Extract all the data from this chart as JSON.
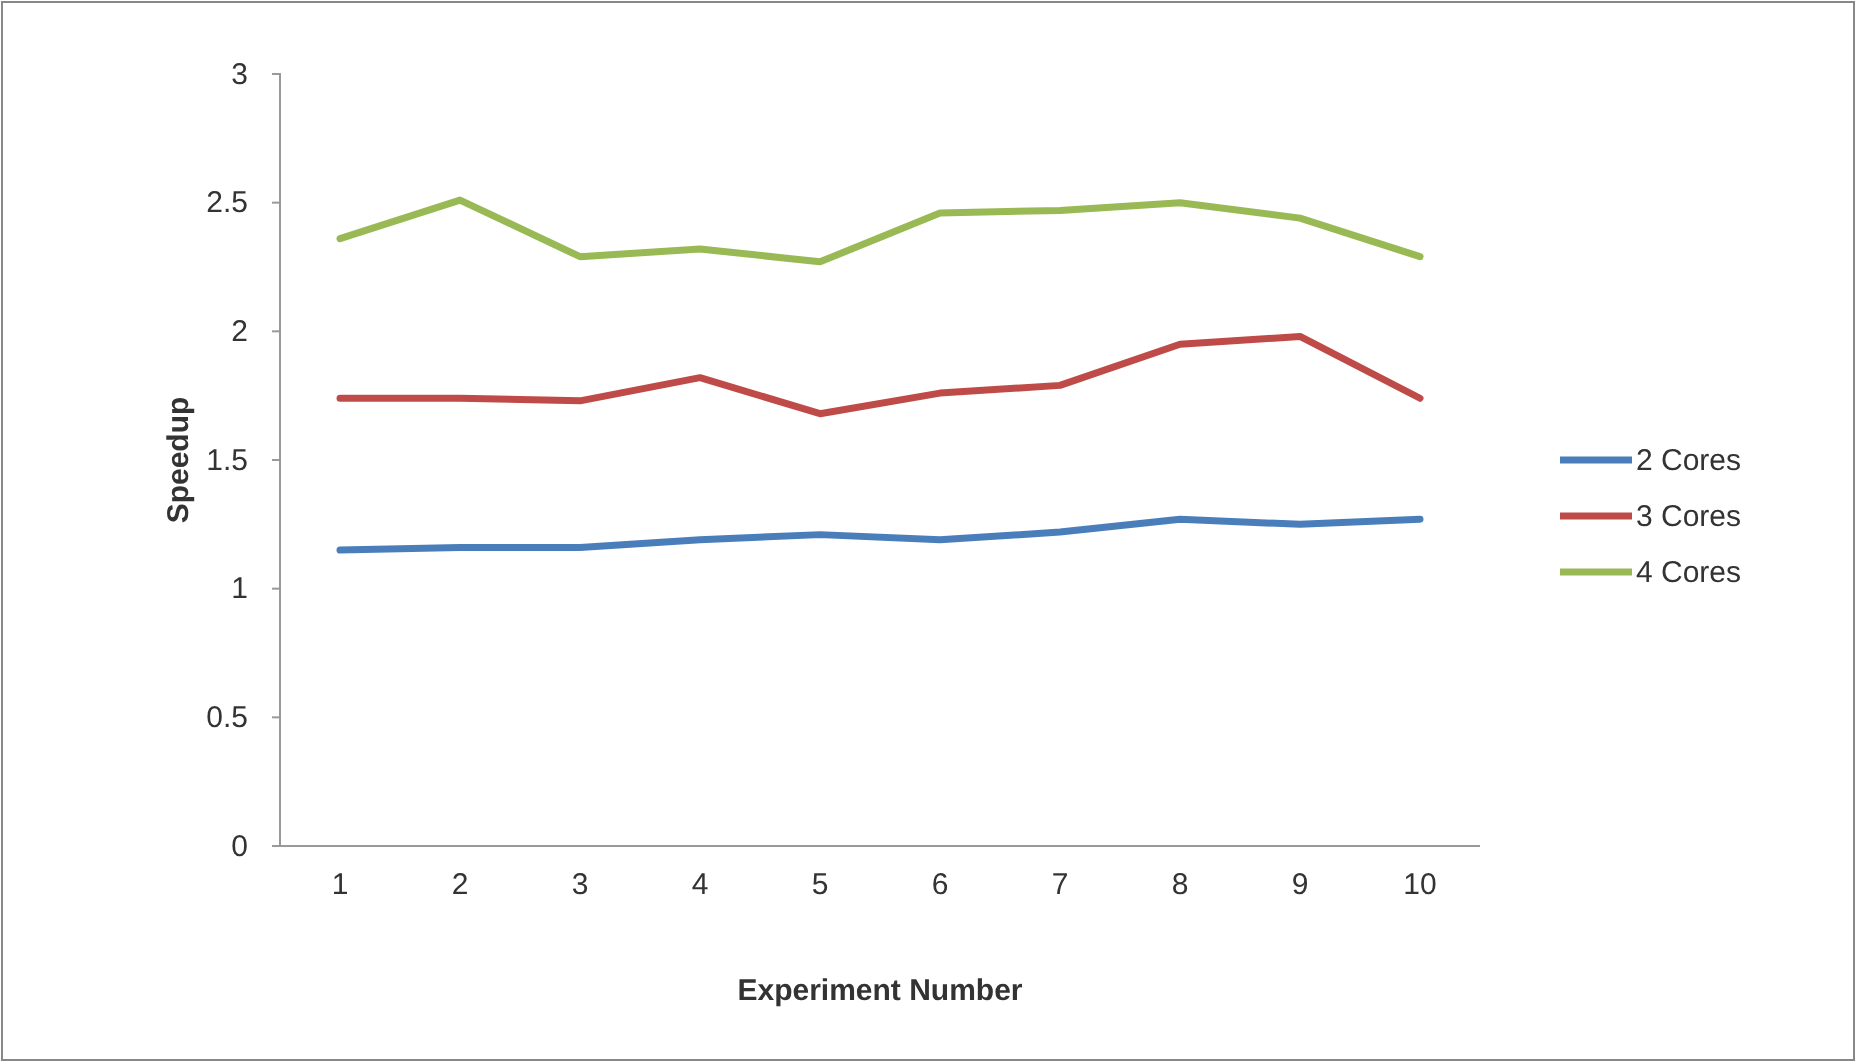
{
  "chart_data": {
    "type": "line",
    "xlabel": "Experiment Number",
    "ylabel": "Speedup",
    "categories": [
      "1",
      "2",
      "3",
      "4",
      "5",
      "6",
      "7",
      "8",
      "9",
      "10"
    ],
    "series": [
      {
        "name": "2 Cores",
        "color": "#4a7ebb",
        "values": [
          1.15,
          1.16,
          1.16,
          1.19,
          1.21,
          1.19,
          1.22,
          1.27,
          1.25,
          1.27
        ]
      },
      {
        "name": "3 Cores",
        "color": "#be4b48",
        "values": [
          1.74,
          1.74,
          1.73,
          1.82,
          1.68,
          1.76,
          1.79,
          1.95,
          1.98,
          1.74
        ]
      },
      {
        "name": "4 Cores",
        "color": "#98b954",
        "values": [
          2.36,
          2.51,
          2.29,
          2.32,
          2.27,
          2.46,
          2.47,
          2.5,
          2.44,
          2.29
        ]
      }
    ],
    "ylim": [
      0,
      3
    ],
    "yticks": [
      0,
      0.5,
      1,
      1.5,
      2,
      2.5,
      3
    ],
    "grid": false,
    "legend": "right",
    "marker": "none",
    "line_style": "solid"
  }
}
